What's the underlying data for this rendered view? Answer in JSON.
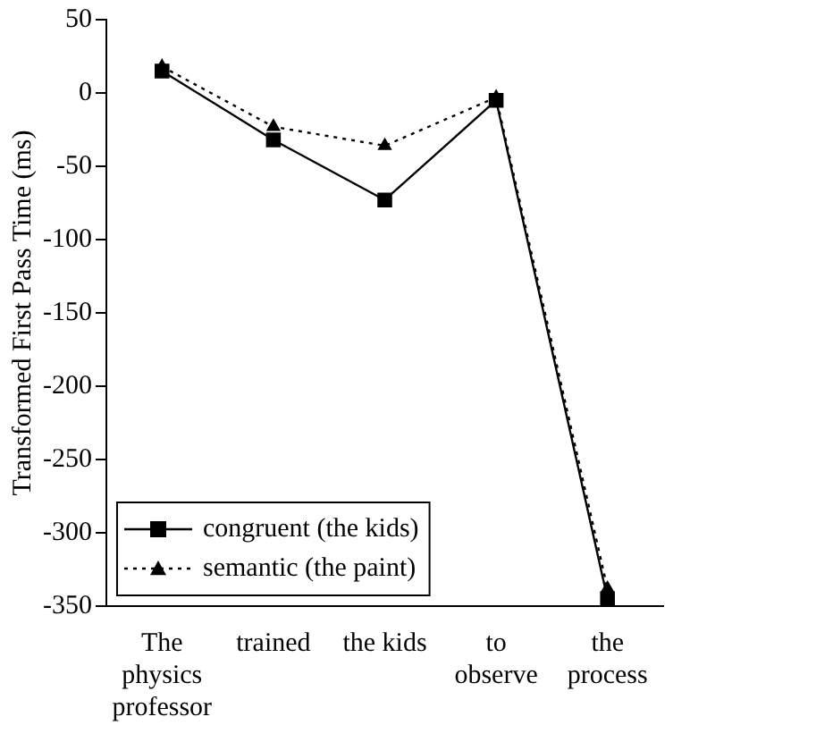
{
  "chart_data": {
    "type": "line",
    "ylabel": "Transformed First Pass Time (ms)",
    "categories": [
      "The physics professor",
      "trained",
      "the kids",
      "to observe",
      "the process"
    ],
    "series": [
      {
        "name": "congruent (the kids)",
        "color": "#000000",
        "marker": "square",
        "line_style": "solid",
        "values": [
          15,
          -32,
          -73,
          -5,
          -345
        ]
      },
      {
        "name": "semantic (the paint)",
        "color": "#000000",
        "marker": "triangle",
        "line_style": "dotted",
        "values": [
          18,
          -23,
          -36,
          -3,
          -338
        ]
      }
    ],
    "ylim": [
      -350,
      50
    ],
    "yticks": [
      50,
      0,
      -50,
      -100,
      -150,
      -200,
      -250,
      -300,
      -350
    ],
    "grid": false,
    "legend": "bottom left"
  }
}
